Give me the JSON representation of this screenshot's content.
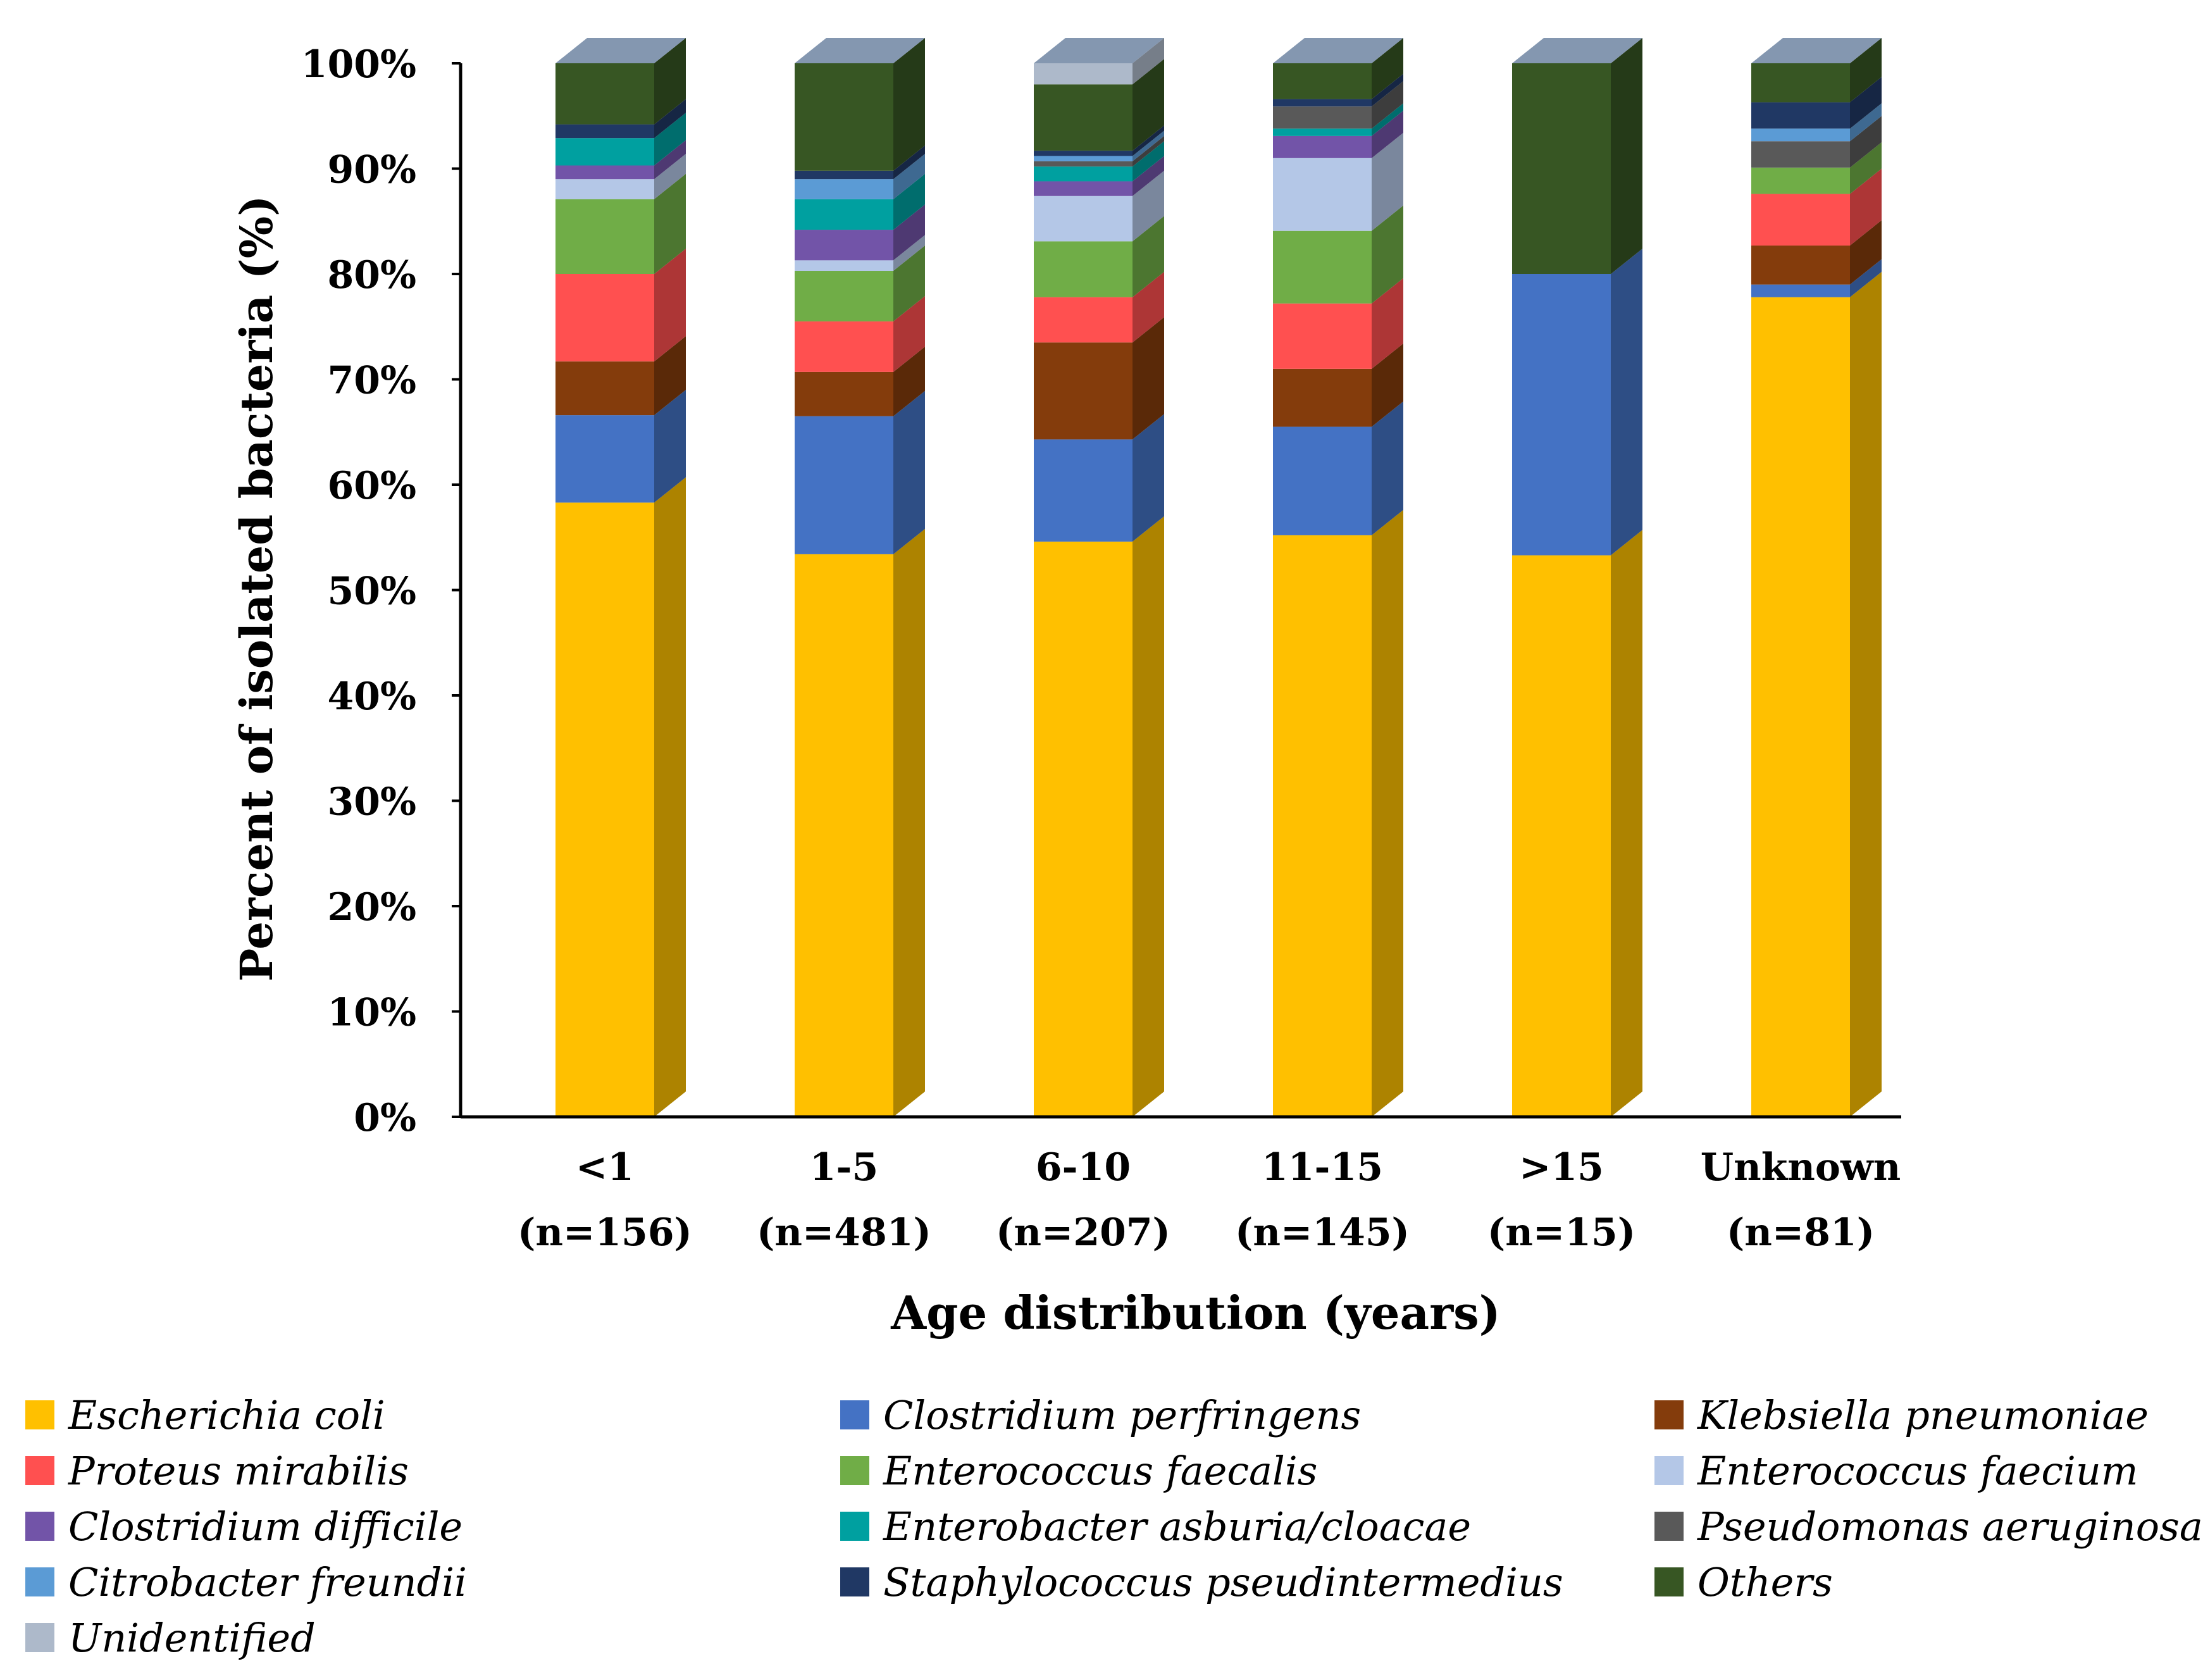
{
  "chart_data": {
    "type": "bar",
    "stacked": true,
    "style": "3d-percent-stacked",
    "ylabel": "Percent of isolated bacteria (%)",
    "xlabel": "Age distribution  (years)",
    "ylim": [
      0,
      100
    ],
    "yticks": [
      "0%",
      "10%",
      "20%",
      "30%",
      "40%",
      "50%",
      "60%",
      "70%",
      "80%",
      "90%",
      "100%"
    ],
    "categories": [
      {
        "label": "<1",
        "n": "(n=156)"
      },
      {
        "label": "1-5",
        "n": "(n=481)"
      },
      {
        "label": "6-10",
        "n": "(n=207)"
      },
      {
        "label": "11-15",
        "n": "(n=145)"
      },
      {
        "label": ">15",
        "n": "(n=15)"
      },
      {
        "label": "Unknown",
        "n": "(n=81)"
      }
    ],
    "series": [
      {
        "name": "Escherichia coli",
        "color": "#FFC000",
        "values": [
          58.3,
          53.4,
          54.6,
          55.2,
          53.3,
          77.8
        ]
      },
      {
        "name": "Clostridium perfringens",
        "color": "#4472C4",
        "values": [
          8.3,
          13.1,
          9.7,
          10.3,
          26.7,
          1.2
        ]
      },
      {
        "name": "Klebsiella pneumoniae",
        "color": "#843C0C",
        "values": [
          5.1,
          4.2,
          9.2,
          5.5,
          0,
          3.7
        ]
      },
      {
        "name": "Proteus mirabilis",
        "color": "#FF5050",
        "values": [
          8.3,
          4.8,
          4.3,
          6.2,
          0,
          4.9
        ]
      },
      {
        "name": "Enterococcus faecalis",
        "color": "#70AD47",
        "values": [
          7.1,
          4.8,
          5.3,
          6.9,
          0,
          2.5
        ]
      },
      {
        "name": "Enterococcus faecium",
        "color": "#B4C7E7",
        "values": [
          1.9,
          1.0,
          4.3,
          6.9,
          0,
          0
        ]
      },
      {
        "name": "Clostridium difficile",
        "color": "#7254A8",
        "values": [
          1.3,
          2.9,
          1.4,
          2.1,
          0,
          0
        ]
      },
      {
        "name": "Enterobacter asburia/cloacae",
        "color": "#00A0A0",
        "values": [
          2.6,
          2.9,
          1.4,
          0.7,
          0,
          0
        ]
      },
      {
        "name": "Pseudomonas aeruginosa",
        "color": "#595959",
        "values": [
          0,
          0,
          0.5,
          2.1,
          0,
          2.5
        ]
      },
      {
        "name": "Citrobacter freundii",
        "color": "#5B9BD5",
        "values": [
          0,
          1.9,
          0.5,
          0,
          0,
          1.2
        ]
      },
      {
        "name": "Staphylococcus pseudintermedius",
        "color": "#203864",
        "values": [
          1.3,
          0.8,
          0.5,
          0.7,
          0,
          2.5
        ]
      },
      {
        "name": "Others",
        "color": "#375623",
        "values": [
          5.8,
          10.2,
          6.3,
          3.4,
          20.0,
          3.7
        ]
      },
      {
        "name": "Unidentified",
        "color": "#ADB9CA",
        "values": [
          0,
          0,
          2.0,
          0,
          0,
          0
        ]
      }
    ]
  }
}
